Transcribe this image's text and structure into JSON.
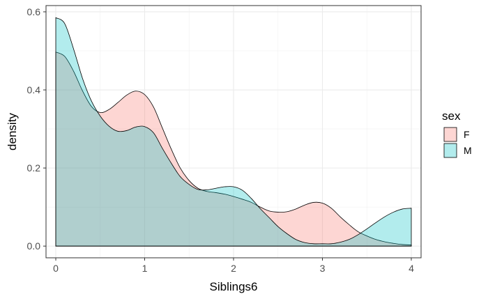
{
  "chart_data": {
    "type": "area",
    "title": "",
    "xlabel": "Siblings6",
    "ylabel": "density",
    "xlim": [
      -0.11,
      4.11
    ],
    "ylim": [
      -0.03,
      0.616
    ],
    "x_ticks": [
      0,
      1,
      2,
      3,
      4
    ],
    "x_tick_labels": [
      "0",
      "1",
      "2",
      "3",
      "4"
    ],
    "y_ticks": [
      0.0,
      0.2,
      0.4,
      0.6
    ],
    "y_tick_labels": [
      "0.0",
      "0.2",
      "0.4",
      "0.6"
    ],
    "grid": true,
    "legend": {
      "title": "sex",
      "position": "right"
    },
    "series": [
      {
        "name": "F",
        "fill": "#F8766D",
        "x": [
          0,
          0.1,
          0.2,
          0.3,
          0.4,
          0.5,
          0.6,
          0.7,
          0.8,
          0.9,
          1.0,
          1.1,
          1.2,
          1.3,
          1.4,
          1.5,
          1.6,
          1.7,
          1.8,
          1.9,
          2.0,
          2.1,
          2.2,
          2.3,
          2.4,
          2.5,
          2.6,
          2.7,
          2.8,
          2.9,
          3.0,
          3.1,
          3.2,
          3.3,
          3.4,
          3.5,
          3.6,
          3.7,
          3.8,
          3.9,
          4.0
        ],
        "y": [
          0.497,
          0.486,
          0.448,
          0.398,
          0.358,
          0.342,
          0.35,
          0.368,
          0.387,
          0.397,
          0.388,
          0.356,
          0.302,
          0.248,
          0.2,
          0.168,
          0.148,
          0.14,
          0.137,
          0.133,
          0.127,
          0.12,
          0.112,
          0.1,
          0.09,
          0.087,
          0.088,
          0.095,
          0.105,
          0.112,
          0.11,
          0.097,
          0.075,
          0.055,
          0.037,
          0.026,
          0.017,
          0.011,
          0.007,
          0.004,
          0.003
        ]
      },
      {
        "name": "M",
        "fill": "#00BFC4",
        "x": [
          0,
          0.1,
          0.2,
          0.3,
          0.4,
          0.5,
          0.6,
          0.7,
          0.8,
          0.9,
          1.0,
          1.1,
          1.2,
          1.3,
          1.4,
          1.5,
          1.6,
          1.7,
          1.8,
          1.9,
          2.0,
          2.1,
          2.2,
          2.3,
          2.4,
          2.5,
          2.6,
          2.7,
          2.8,
          2.9,
          3.0,
          3.1,
          3.2,
          3.3,
          3.4,
          3.5,
          3.6,
          3.7,
          3.8,
          3.9,
          4.0
        ],
        "y": [
          0.585,
          0.57,
          0.505,
          0.43,
          0.372,
          0.333,
          0.307,
          0.294,
          0.296,
          0.305,
          0.306,
          0.29,
          0.25,
          0.212,
          0.178,
          0.158,
          0.145,
          0.144,
          0.148,
          0.152,
          0.152,
          0.143,
          0.122,
          0.096,
          0.073,
          0.05,
          0.032,
          0.017,
          0.009,
          0.006,
          0.006,
          0.006,
          0.01,
          0.017,
          0.029,
          0.044,
          0.06,
          0.075,
          0.087,
          0.095,
          0.097
        ]
      }
    ]
  }
}
